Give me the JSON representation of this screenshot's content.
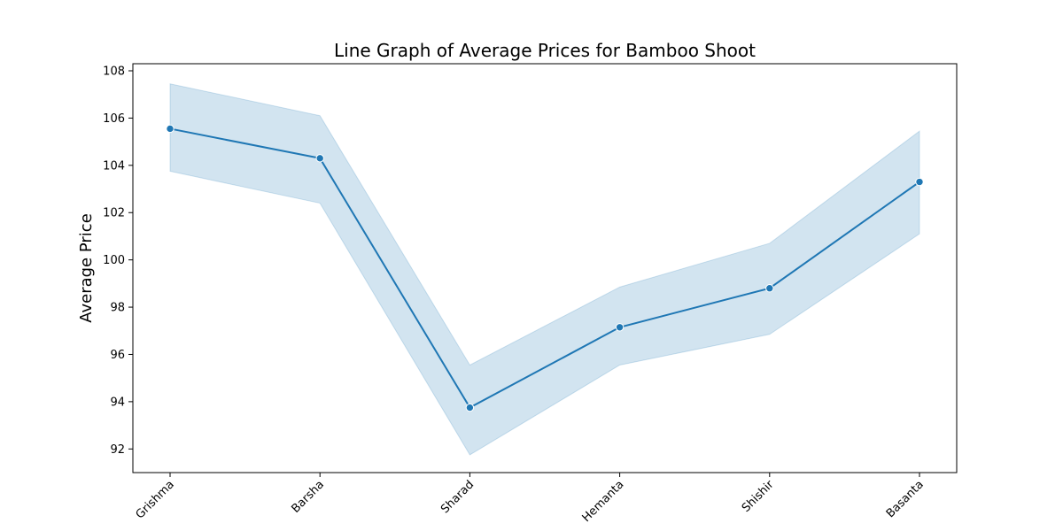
{
  "chart_data": {
    "type": "line",
    "title": "Line Graph of Average Prices for Bamboo Shoot",
    "xlabel": "",
    "ylabel": "Average Price",
    "categories": [
      "Grishma",
      "Barsha",
      "Sharad",
      "Hemanta",
      "Shishir",
      "Basanta"
    ],
    "series": [
      {
        "values": [
          105.55,
          104.3,
          93.75,
          97.15,
          98.8,
          103.3
        ],
        "ci_lower": [
          103.75,
          102.4,
          91.75,
          95.55,
          96.85,
          101.1
        ],
        "ci_upper": [
          107.45,
          106.1,
          95.55,
          98.85,
          100.7,
          105.45
        ]
      }
    ],
    "ylim": [
      91,
      108.3
    ],
    "yticks": [
      92,
      94,
      96,
      98,
      100,
      102,
      104,
      106,
      108
    ],
    "grid": false,
    "legend": "none",
    "colors": {
      "line": "#1f77b4",
      "band": "#1f77b4",
      "axis": "#000000",
      "background": "#ffffff"
    }
  }
}
